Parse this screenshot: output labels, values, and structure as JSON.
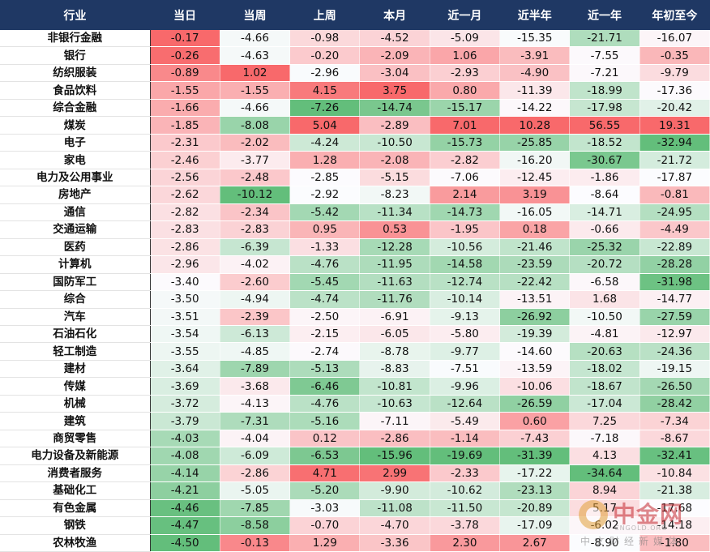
{
  "table": {
    "header": [
      "行业",
      "当日",
      "当周",
      "上周",
      "本月",
      "近一月",
      "近半年",
      "近一年",
      "年初至今"
    ],
    "rows": [
      [
        "非银行金融",
        "-0.17",
        "-4.66",
        "-0.98",
        "-4.52",
        "-5.09",
        "-15.35",
        "-21.71",
        "-16.07"
      ],
      [
        "银行",
        "-0.26",
        "-4.63",
        "-0.20",
        "-2.09",
        "1.06",
        "-3.91",
        "-7.55",
        "-0.35"
      ],
      [
        "纺织服装",
        "-0.89",
        "1.02",
        "-2.96",
        "-3.04",
        "-2.93",
        "-4.90",
        "-7.21",
        "-9.79"
      ],
      [
        "食品饮料",
        "-1.55",
        "-1.55",
        "4.15",
        "3.75",
        "0.80",
        "-11.39",
        "-18.99",
        "-17.36"
      ],
      [
        "综合金融",
        "-1.66",
        "-4.66",
        "-7.26",
        "-14.74",
        "-15.17",
        "-14.22",
        "-17.98",
        "-20.42"
      ],
      [
        "煤炭",
        "-1.85",
        "-8.08",
        "5.04",
        "-2.89",
        "7.01",
        "10.28",
        "56.55",
        "19.31"
      ],
      [
        "电子",
        "-2.31",
        "-2.02",
        "-4.24",
        "-10.50",
        "-15.73",
        "-25.85",
        "-18.52",
        "-32.94"
      ],
      [
        "家电",
        "-2.46",
        "-3.77",
        "1.28",
        "-2.08",
        "-2.82",
        "-16.20",
        "-30.67",
        "-21.72"
      ],
      [
        "电力及公用事业",
        "-2.56",
        "-2.48",
        "-2.85",
        "-5.15",
        "-7.06",
        "-12.45",
        "-1.86",
        "-17.87"
      ],
      [
        "房地产",
        "-2.62",
        "-10.12",
        "-2.92",
        "-8.23",
        "2.14",
        "3.19",
        "-8.64",
        "-0.81"
      ],
      [
        "通信",
        "-2.82",
        "-2.34",
        "-5.42",
        "-11.34",
        "-14.73",
        "-16.05",
        "-14.71",
        "-24.95"
      ],
      [
        "交通运输",
        "-2.83",
        "-2.83",
        "0.95",
        "0.53",
        "-1.95",
        "0.18",
        "-0.66",
        "-4.49"
      ],
      [
        "医药",
        "-2.86",
        "-6.39",
        "-1.33",
        "-12.28",
        "-10.56",
        "-21.46",
        "-25.32",
        "-22.89"
      ],
      [
        "计算机",
        "-2.96",
        "-4.02",
        "-4.76",
        "-11.95",
        "-14.58",
        "-23.59",
        "-20.72",
        "-28.28"
      ],
      [
        "国防军工",
        "-3.40",
        "-2.60",
        "-5.45",
        "-11.63",
        "-12.74",
        "-22.42",
        "-6.58",
        "-31.98"
      ],
      [
        "综合",
        "-3.50",
        "-4.94",
        "-4.74",
        "-11.76",
        "-10.14",
        "-13.51",
        "1.68",
        "-14.77"
      ],
      [
        "汽车",
        "-3.51",
        "-2.39",
        "-2.50",
        "-6.91",
        "-9.13",
        "-26.92",
        "-10.50",
        "-27.59"
      ],
      [
        "石油石化",
        "-3.54",
        "-6.13",
        "-2.15",
        "-6.05",
        "-5.80",
        "-19.39",
        "-4.81",
        "-12.97"
      ],
      [
        "轻工制造",
        "-3.55",
        "-4.85",
        "-2.74",
        "-8.78",
        "-9.77",
        "-14.60",
        "-20.63",
        "-24.36"
      ],
      [
        "建材",
        "-3.64",
        "-7.89",
        "-5.13",
        "-8.83",
        "-7.51",
        "-13.59",
        "-18.02",
        "-19.15"
      ],
      [
        "传媒",
        "-3.69",
        "-3.68",
        "-6.46",
        "-10.81",
        "-9.96",
        "-10.06",
        "-18.67",
        "-26.50"
      ],
      [
        "机械",
        "-3.72",
        "-4.13",
        "-4.76",
        "-10.63",
        "-12.64",
        "-26.59",
        "-17.04",
        "-28.42"
      ],
      [
        "建筑",
        "-3.79",
        "-7.31",
        "-5.16",
        "-7.11",
        "-5.49",
        "0.60",
        "7.25",
        "-7.34"
      ],
      [
        "商贸零售",
        "-4.03",
        "-4.04",
        "0.12",
        "-2.86",
        "-1.14",
        "-7.43",
        "-7.18",
        "-8.67"
      ],
      [
        "电力设备及新能源",
        "-4.08",
        "-6.09",
        "-6.53",
        "-15.96",
        "-19.69",
        "-31.39",
        "4.13",
        "-32.41"
      ],
      [
        "消费者服务",
        "-4.14",
        "-2.86",
        "4.71",
        "2.99",
        "-2.33",
        "-17.22",
        "-34.64",
        "-10.84"
      ],
      [
        "基础化工",
        "-4.21",
        "-5.05",
        "-5.20",
        "-9.90",
        "-10.62",
        "-23.13",
        "8.94",
        "-21.38"
      ],
      [
        "有色金属",
        "-4.46",
        "-7.85",
        "-3.03",
        "-11.08",
        "-11.50",
        "-20.89",
        "5.17",
        "-17.68"
      ],
      [
        "钢铁",
        "-4.47",
        "-8.58",
        "-0.70",
        "-4.70",
        "-3.78",
        "-17.09",
        "-6.02",
        "-14.18"
      ],
      [
        "农林牧渔",
        "-4.50",
        "-0.13",
        "1.29",
        "-3.36",
        "2.30",
        "2.67",
        "-8.90",
        "-1.80"
      ]
    ]
  },
  "watermark": {
    "name": "中金网",
    "domain": "CNGOLD.ORG",
    "tagline": "中文财经新媒体"
  }
}
